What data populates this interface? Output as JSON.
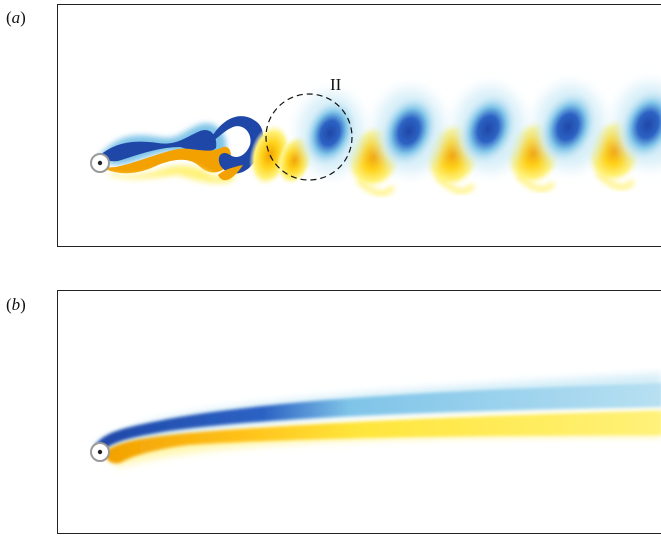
{
  "figure": {
    "panel_a": {
      "label_open": "(",
      "label_letter": "a",
      "label_close": ")",
      "annotation": "II"
    },
    "panel_b": {
      "label_open": "(",
      "label_letter": "b",
      "label_close": ")"
    }
  },
  "colors": {
    "positive_strong": "#f2a100",
    "positive_mid": "#ffd21a",
    "positive_light": "#fff27a",
    "negative_strong": "#1f47a8",
    "negative_mid": "#7fc4e8",
    "negative_light": "#d5eef8",
    "body": "#9a9a9a"
  }
}
